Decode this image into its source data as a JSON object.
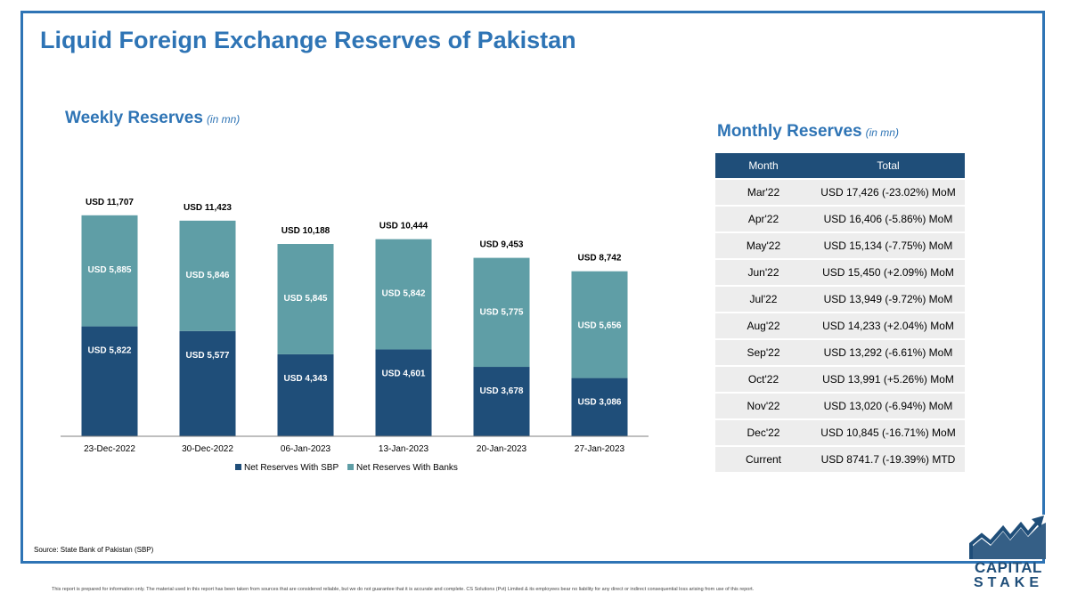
{
  "title": "Liquid Foreign Exchange Reserves of Pakistan",
  "weekly": {
    "heading": "Weekly Reserves",
    "unit": "(in mn)"
  },
  "monthly": {
    "heading": "Monthly Reserves",
    "unit": "(in mn)",
    "columns": [
      "Month",
      "Total"
    ],
    "rows": [
      {
        "month": "Mar'22",
        "total": "USD 17,426 (-23.02%) MoM"
      },
      {
        "month": "Apr'22",
        "total": "USD 16,406 (-5.86%) MoM"
      },
      {
        "month": "May'22",
        "total": "USD 15,134 (-7.75%) MoM"
      },
      {
        "month": "Jun'22",
        "total": "USD 15,450 (+2.09%) MoM"
      },
      {
        "month": "Jul'22",
        "total": "USD 13,949 (-9.72%) MoM"
      },
      {
        "month": "Aug'22",
        "total": "USD 14,233 (+2.04%) MoM"
      },
      {
        "month": "Sep'22",
        "total": "USD 13,292 (-6.61%) MoM"
      },
      {
        "month": "Oct'22",
        "total": "USD 13,991 (+5.26%) MoM"
      },
      {
        "month": "Nov'22",
        "total": "USD 13,020 (-6.94%) MoM"
      },
      {
        "month": "Dec'22",
        "total": "USD 10,845 (-16.71%) MoM"
      },
      {
        "month": "Current",
        "total": "USD 8741.7 (-19.39%) MTD"
      }
    ]
  },
  "source": "Source: State Bank of Pakistan (SBP)",
  "disclaimer": "This report is prepared for information only. The material used in this report has been taken from sources that are considered reliable, but we do not guarantee that it is accurate and complete. CS Solutions (Pvt) Limited & its employees bear no liability for any direct or indirect consequential loss arising from use of this report.",
  "logo": {
    "line1": "CAPITAL",
    "line2": "STAKE"
  },
  "colors": {
    "sbp": "#1f4e79",
    "banks": "#5f9ea6",
    "title": "#2e74b5"
  },
  "chart_data": {
    "type": "bar",
    "stacked": true,
    "categories": [
      "23-Dec-2022",
      "30-Dec-2022",
      "06-Jan-2023",
      "13-Jan-2023",
      "20-Jan-2023",
      "27-Jan-2023"
    ],
    "series": [
      {
        "name": "Net Reserves With SBP",
        "values": [
          5822,
          5577,
          4343,
          4601,
          3678,
          3086
        ],
        "labels": [
          "USD 5,822",
          "USD 5,577",
          "USD 4,343",
          "USD 4,601",
          "USD 3,678",
          "USD 3,086"
        ]
      },
      {
        "name": "Net Reserves With Banks",
        "values": [
          5885,
          5846,
          5845,
          5842,
          5775,
          5656
        ],
        "labels": [
          "USD 5,885",
          "USD 5,846",
          "USD 5,845",
          "USD 5,842",
          "USD 5,775",
          "USD 5,656"
        ]
      }
    ],
    "totals": [
      11707,
      11423,
      10188,
      10444,
      9453,
      8742
    ],
    "total_labels": [
      "USD 11,707",
      "USD 11,423",
      "USD 10,188",
      "USD 10,444",
      "USD 9,453",
      "USD 8,742"
    ],
    "legend_position": "bottom",
    "grid": false
  }
}
